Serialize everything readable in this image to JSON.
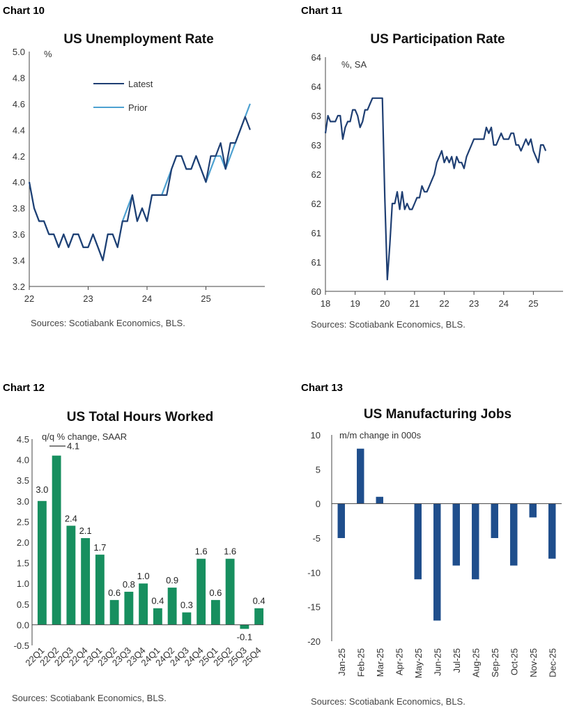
{
  "chart_data": [
    {
      "type": "line",
      "label": "Chart 10",
      "title": "US Unemployment Rate",
      "unit": "%",
      "source": "Sources: Scotiabank Economics, BLS.",
      "ylim": [
        3.2,
        5.0
      ],
      "yticks": [
        "5.0",
        "4.8",
        "4.6",
        "4.4",
        "4.2",
        "4.0",
        "3.8",
        "3.6",
        "3.4",
        "3.2"
      ],
      "ytick_values": [
        5.0,
        4.8,
        4.6,
        4.4,
        4.2,
        4.0,
        3.8,
        3.6,
        3.4,
        3.2
      ],
      "xlim": [
        22,
        26
      ],
      "xticks": [
        "22",
        "23",
        "24",
        "25"
      ],
      "xtick_values": [
        22,
        23,
        24,
        25
      ],
      "legend_position": "top-left",
      "colors": {
        "Latest": "#1f3f73",
        "Prior": "#4da1d1"
      },
      "series": [
        {
          "name": "Latest",
          "x_start": 22,
          "step": 0.0833333,
          "values": [
            4.0,
            3.8,
            3.7,
            3.7,
            3.6,
            3.6,
            3.5,
            3.6,
            3.5,
            3.6,
            3.6,
            3.5,
            3.5,
            3.6,
            3.5,
            3.4,
            3.6,
            3.6,
            3.5,
            3.7,
            3.7,
            3.9,
            3.7,
            3.8,
            3.7,
            3.9,
            3.9,
            3.9,
            3.9,
            4.1,
            4.2,
            4.2,
            4.1,
            4.1,
            4.2,
            4.1,
            4.0,
            4.2,
            4.2,
            4.3,
            4.1,
            4.3,
            4.3,
            4.4,
            4.5,
            4.4
          ]
        },
        {
          "name": "Prior",
          "x_start": 22,
          "step": 0.0833333,
          "values": [
            4.0,
            3.8,
            3.7,
            3.7,
            3.6,
            3.6,
            3.5,
            3.6,
            3.5,
            3.6,
            3.6,
            3.5,
            3.5,
            3.6,
            3.5,
            3.4,
            3.6,
            3.6,
            3.5,
            3.7,
            3.8,
            3.9,
            3.7,
            3.8,
            3.7,
            3.9,
            3.9,
            3.9,
            4.0,
            4.1,
            4.2,
            4.2,
            4.1,
            4.1,
            4.2,
            4.1,
            4.0,
            4.1,
            4.2,
            4.2,
            4.1,
            4.2,
            4.3,
            4.4,
            4.5,
            4.6
          ]
        }
      ]
    },
    {
      "type": "line",
      "label": "Chart 11",
      "title": "US Participation Rate",
      "unit": "%, SA",
      "source": "Sources: Scotiabank Economics, BLS.",
      "ylim": [
        60,
        64
      ],
      "yticks": [
        "64",
        "64",
        "63",
        "63",
        "62",
        "62",
        "61",
        "61",
        "60"
      ],
      "ytick_values": [
        64,
        63.5,
        63,
        62.5,
        62,
        61.5,
        61,
        60.5,
        60
      ],
      "xlim": [
        18,
        26
      ],
      "xticks": [
        "18",
        "19",
        "20",
        "21",
        "22",
        "23",
        "24",
        "25"
      ],
      "xtick_values": [
        18,
        19,
        20,
        21,
        22,
        23,
        24,
        25
      ],
      "colors": {
        "line": "#1f3f73"
      },
      "series": [
        {
          "name": "",
          "x_start": 18,
          "step": 0.0833333,
          "values": [
            62.7,
            63.0,
            62.9,
            62.9,
            62.9,
            63.0,
            63.0,
            62.6,
            62.8,
            62.9,
            62.9,
            63.1,
            63.1,
            63.0,
            62.8,
            62.9,
            63.1,
            63.1,
            63.2,
            63.3,
            63.3,
            63.3,
            63.3,
            63.3,
            61.6,
            60.2,
            60.8,
            61.5,
            61.5,
            61.7,
            61.4,
            61.7,
            61.4,
            61.5,
            61.4,
            61.4,
            61.5,
            61.6,
            61.6,
            61.8,
            61.7,
            61.7,
            61.8,
            61.9,
            62.0,
            62.2,
            62.3,
            62.4,
            62.2,
            62.3,
            62.2,
            62.3,
            62.1,
            62.3,
            62.2,
            62.2,
            62.1,
            62.3,
            62.4,
            62.5,
            62.6,
            62.6,
            62.6,
            62.6,
            62.6,
            62.8,
            62.7,
            62.8,
            62.5,
            62.5,
            62.6,
            62.7,
            62.6,
            62.6,
            62.6,
            62.7,
            62.7,
            62.5,
            62.5,
            62.4,
            62.5,
            62.6,
            62.5,
            62.6,
            62.4,
            62.3,
            62.2,
            62.5,
            62.5,
            62.4
          ]
        }
      ]
    },
    {
      "type": "bar",
      "label": "Chart 12",
      "title": "US Total Hours Worked",
      "unit": "q/q % change, SAAR",
      "source": "Sources: Scotiabank Economics, BLS.",
      "ylim": [
        -0.5,
        4.5
      ],
      "yticks": [
        "4.5",
        "4.0",
        "3.5",
        "3.0",
        "2.5",
        "2.0",
        "1.5",
        "1.0",
        "0.5",
        "0.0",
        "-0.5"
      ],
      "ytick_values": [
        4.5,
        4.0,
        3.5,
        3.0,
        2.5,
        2.0,
        1.5,
        1.0,
        0.5,
        0.0,
        -0.5
      ],
      "color": "#178f5f",
      "categories": [
        "22Q1",
        "22Q2",
        "22Q3",
        "22Q4",
        "23Q1",
        "23Q2",
        "23Q3",
        "23Q4",
        "24Q1",
        "24Q2",
        "24Q3",
        "24Q4",
        "25Q1",
        "25Q2",
        "25Q3",
        "25Q4"
      ],
      "values": [
        3.0,
        4.1,
        2.4,
        2.1,
        1.7,
        0.6,
        0.8,
        1.0,
        0.4,
        0.9,
        0.3,
        1.6,
        0.6,
        1.6,
        -0.1,
        0.4
      ],
      "data_labels": [
        "3.0",
        "4.1",
        "2.4",
        "2.1",
        "1.7",
        "0.6",
        "0.8",
        "1.0",
        "0.4",
        "0.9",
        "0.3",
        "1.6",
        "0.6",
        "1.6",
        "-0.1",
        "0.4"
      ]
    },
    {
      "type": "bar",
      "label": "Chart 13",
      "title": "US Manufacturing Jobs",
      "unit": "m/m change in 000s",
      "source": "Sources: Scotiabank Economics, BLS.",
      "ylim": [
        -20,
        10
      ],
      "yticks": [
        "10",
        "5",
        "0",
        "-5",
        "-10",
        "-15",
        "-20"
      ],
      "ytick_values": [
        10,
        5,
        0,
        -5,
        -10,
        -15,
        -20
      ],
      "color": "#1f4e8c",
      "categories": [
        "Jan-25",
        "Feb-25",
        "Mar-25",
        "Apr-25",
        "May-25",
        "Jun-25",
        "Jul-25",
        "Aug-25",
        "Sep-25",
        "Oct-25",
        "Nov-25",
        "Dec-25"
      ],
      "values": [
        -5,
        8,
        1,
        0,
        -11,
        -17,
        -9,
        -11,
        -5,
        -9,
        -2,
        -8
      ]
    }
  ]
}
